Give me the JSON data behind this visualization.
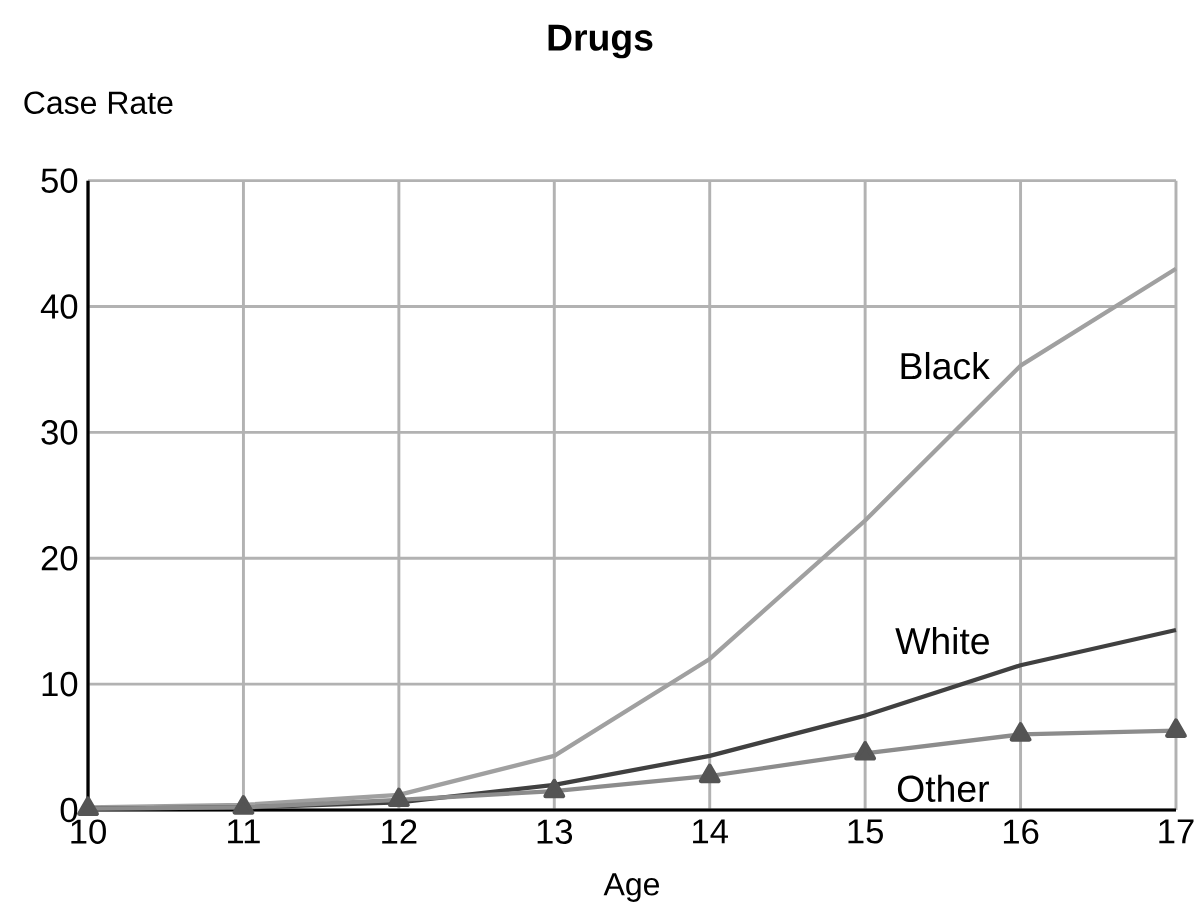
{
  "chart_data": {
    "type": "line",
    "title": "Drugs",
    "xlabel": "Age",
    "ylabel": "Case Rate",
    "x": [
      10,
      11,
      12,
      13,
      14,
      15,
      16,
      17
    ],
    "series": [
      {
        "name": "Black",
        "color": "#a0a0a0",
        "values": [
          0.2,
          0.4,
          1.2,
          4.3,
          12,
          23,
          35.3,
          43
        ],
        "marker": "none"
      },
      {
        "name": "White",
        "color": "#404040",
        "values": [
          0.1,
          0.2,
          0.6,
          2,
          4.3,
          7.5,
          11.5,
          14.3
        ],
        "marker": "none"
      },
      {
        "name": "Other",
        "color": "#8c8c8c",
        "values": [
          0.1,
          0.2,
          0.8,
          1.5,
          2.7,
          4.5,
          6,
          6.3
        ],
        "marker": "triangle"
      }
    ],
    "xlim": [
      10,
      17
    ],
    "xticks": [
      10,
      11,
      12,
      13,
      14,
      15,
      16,
      17
    ],
    "ylim": [
      0,
      50
    ],
    "yticks": [
      0,
      10,
      20,
      30,
      40,
      50
    ],
    "grid": true,
    "legend": false
  }
}
